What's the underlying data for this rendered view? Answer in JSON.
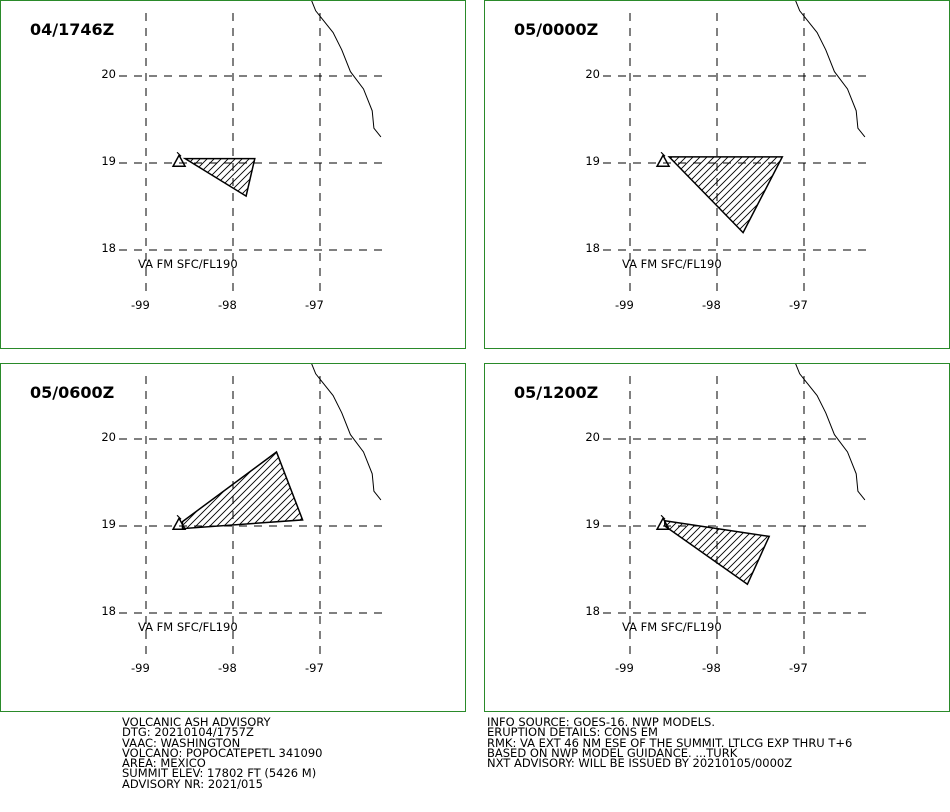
{
  "map_panels": [
    {
      "time_label": "04/1746Z",
      "va_label": "VA FM SFC/FL190",
      "ash_polygon": [
        [
          -98.55,
          19.05
        ],
        [
          -97.75,
          19.05
        ],
        [
          -97.85,
          18.62
        ],
        [
          -98.55,
          19.05
        ]
      ]
    },
    {
      "time_label": "05/0000Z",
      "va_label": "VA FM SFC/FL190",
      "ash_polygon": [
        [
          -98.55,
          19.07
        ],
        [
          -97.25,
          19.07
        ],
        [
          -97.7,
          18.2
        ],
        [
          -98.55,
          19.07
        ]
      ]
    },
    {
      "time_label": "05/0600Z",
      "va_label": "VA FM SFC/FL190",
      "ash_polygon": [
        [
          -98.58,
          19.05
        ],
        [
          -97.5,
          19.85
        ],
        [
          -97.2,
          19.07
        ],
        [
          -98.58,
          18.97
        ],
        [
          -98.58,
          19.05
        ]
      ]
    },
    {
      "time_label": "05/1200Z",
      "va_label": "VA FM SFC/FL190",
      "ash_polygon": [
        [
          -98.6,
          19.06
        ],
        [
          -97.4,
          18.88
        ],
        [
          -97.65,
          18.33
        ],
        [
          -98.6,
          19.0
        ],
        [
          -98.6,
          19.06
        ]
      ]
    }
  ],
  "lat_labels": [
    "20",
    "19",
    "18"
  ],
  "lon_labels": [
    "-99",
    "-98",
    "-97"
  ],
  "lat_values": [
    20,
    19,
    18
  ],
  "lon_values": [
    -99,
    -98,
    -97
  ],
  "volcano_location": [
    -98.62,
    19.02
  ],
  "coastline": [
    [
      -97.15,
      21.0
    ],
    [
      -97.05,
      20.75
    ],
    [
      -96.85,
      20.5
    ],
    [
      -96.75,
      20.3
    ],
    [
      -96.65,
      20.05
    ],
    [
      -96.5,
      19.85
    ],
    [
      -96.4,
      19.6
    ],
    [
      -96.38,
      19.4
    ],
    [
      -96.3,
      19.3
    ]
  ],
  "advisory_left": [
    "VOLCANIC ASH ADVISORY",
    "DTG: 20210104/1757Z",
    "VAAC: WASHINGTON",
    "VOLCANO: POPOCATEPETL 341090",
    "AREA: MEXICO",
    "SUMMIT ELEV: 17802 FT (5426 M)",
    "ADVISORY NR: 2021/015"
  ],
  "advisory_right": [
    "INFO SOURCE: GOES-16. NWP MODELS.",
    "ERUPTION DETAILS: CONS EM",
    "RMK: VA EXT 46 NM ESE OF THE SUMMIT. LTLCG EXP THRU T+6",
    "BASED ON NWP MODEL GUIDANCE.   ...TURK",
    "NXT ADVISORY: WILL BE ISSUED BY 20210105/0000Z"
  ]
}
